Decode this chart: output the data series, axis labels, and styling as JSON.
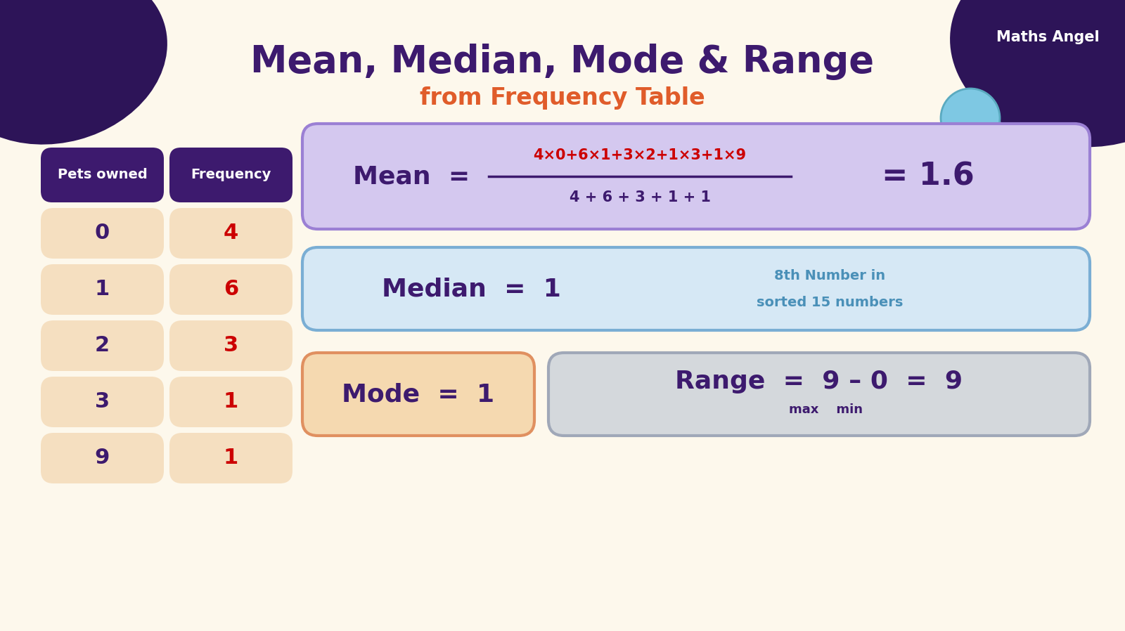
{
  "bg_color": "#fdf8ec",
  "title_color": "#3d1a6e",
  "subtitle_color": "#e05c2a",
  "table_header_bg": "#3d1a6e",
  "table_header_text": "#ffffff",
  "table_cell_bg": "#f5dfc0",
  "table_pets": [
    "0",
    "1",
    "2",
    "3",
    "9"
  ],
  "table_freq": [
    "4",
    "6",
    "3",
    "1",
    "1"
  ],
  "freq_color": "#cc0000",
  "pets_color": "#3d1a6e",
  "mean_box_bg": "#d4c8ef",
  "mean_box_border": "#9b80d4",
  "mean_label_color": "#3d1a6e",
  "mean_numerator_color": "#cc0000",
  "mean_denominator_color": "#3d1a6e",
  "mean_result_color": "#3d1a6e",
  "median_box_bg": "#d6e8f5",
  "median_box_border": "#7aaed4",
  "median_label_color": "#3d1a6e",
  "median_note_color": "#4a90b8",
  "mode_box_bg": "#f5d9b0",
  "mode_box_border": "#e09060",
  "mode_label_color": "#3d1a6e",
  "range_box_bg": "#d4d8dc",
  "range_box_border": "#a0a8b8",
  "range_label_color": "#3d1a6e",
  "blob_color": "#2d1458",
  "planet_color": "#7ec8e3",
  "logo_text_color": "#ffffff"
}
